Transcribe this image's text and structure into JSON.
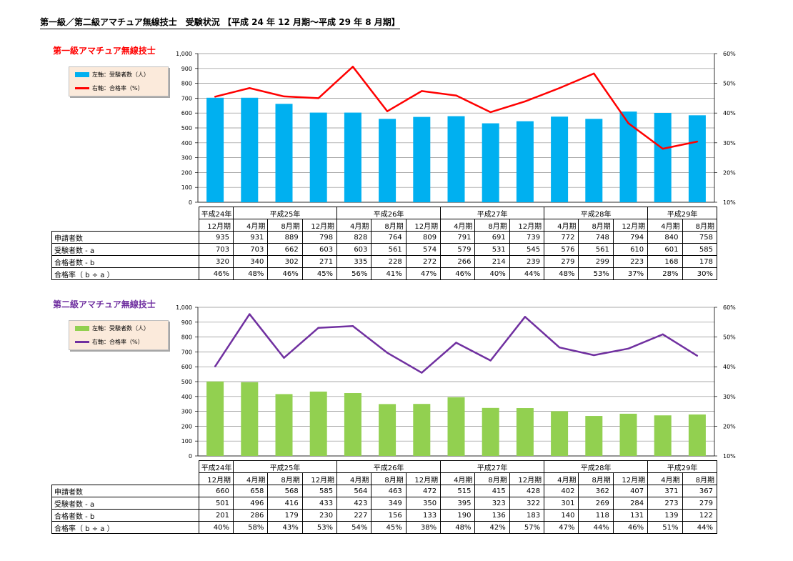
{
  "page_title": "第一級／第二級アマチュア無線技士　受験状況 【平成 24 年 12 月期～平成 29 年 8 月期】",
  "sections": [
    {
      "title": "第一級アマチュア無線技士",
      "title_color": "#ff0000",
      "legend": {
        "bar_label": "左軸：受験者数（人）",
        "line_label": "右軸：合格率（%）"
      },
      "years": [
        {
          "label": "平成24年",
          "span": 1
        },
        {
          "label": "平成25年",
          "span": 3
        },
        {
          "label": "平成26年",
          "span": 3
        },
        {
          "label": "平成27年",
          "span": 3
        },
        {
          "label": "平成28年",
          "span": 3
        },
        {
          "label": "平成29年",
          "span": 2
        }
      ],
      "row_labels": [
        "申請者数",
        "受験者数 - a",
        "合格者数 - b",
        "合格率（ b ÷ a ）"
      ],
      "rows": {
        "applicants": [
          935,
          931,
          889,
          798,
          828,
          764,
          809,
          791,
          691,
          739,
          772,
          748,
          794,
          840,
          758
        ],
        "passed": [
          320,
          340,
          302,
          271,
          335,
          228,
          272,
          266,
          214,
          239,
          279,
          299,
          223,
          168,
          178
        ],
        "rate_labels": [
          "46%",
          "48%",
          "46%",
          "45%",
          "56%",
          "41%",
          "47%",
          "46%",
          "40%",
          "44%",
          "48%",
          "53%",
          "37%",
          "28%",
          "30%"
        ]
      },
      "chart_data": {
        "type": "bar",
        "categories": [
          "12月期",
          "4月期",
          "8月期",
          "12月期",
          "4月期",
          "8月期",
          "12月期",
          "4月期",
          "8月期",
          "12月期",
          "4月期",
          "8月期",
          "12月期",
          "4月期",
          "8月期"
        ],
        "series": [
          {
            "name": "左軸：受験者数（人）",
            "type": "bar",
            "axis": "left",
            "color": "#00b0f0",
            "values": [
              703,
              703,
              662,
              603,
              603,
              561,
              574,
              579,
              531,
              545,
              576,
              561,
              610,
              601,
              585
            ]
          },
          {
            "name": "右軸：合格率（%）",
            "type": "line",
            "axis": "right",
            "color": "#ff0000",
            "values": [
              45.5,
              48.4,
              45.6,
              45.0,
              55.6,
              40.6,
              47.4,
              45.9,
              40.3,
              43.9,
              48.4,
              53.3,
              36.6,
              28.0,
              30.4
            ]
          }
        ],
        "y_left": {
          "min": 0,
          "max": 1000,
          "step": 100,
          "tick_labels": [
            "0",
            "100",
            "200",
            "300",
            "400",
            "500",
            "600",
            "700",
            "800",
            "900",
            "1,000"
          ]
        },
        "y_right": {
          "min": 10,
          "max": 60,
          "step": 10,
          "tick_labels": [
            "10%",
            "20%",
            "30%",
            "40%",
            "50%",
            "60%"
          ]
        },
        "grid": true,
        "legend_position": "top-left"
      }
    },
    {
      "title": "第二級アマチュア無線技士",
      "title_color": "#7030a0",
      "legend": {
        "bar_label": "左軸：受験者数（人）",
        "line_label": "右軸：合格率（%）"
      },
      "years": [
        {
          "label": "平成24年",
          "span": 1
        },
        {
          "label": "平成25年",
          "span": 3
        },
        {
          "label": "平成26年",
          "span": 3
        },
        {
          "label": "平成27年",
          "span": 3
        },
        {
          "label": "平成28年",
          "span": 3
        },
        {
          "label": "平成29年",
          "span": 2
        }
      ],
      "row_labels": [
        "申請者数",
        "受験者数 - a",
        "合格者数 - b",
        "合格率（ b ÷ a ）"
      ],
      "rows": {
        "applicants": [
          660,
          658,
          568,
          585,
          564,
          463,
          472,
          515,
          415,
          428,
          402,
          362,
          407,
          371,
          367
        ],
        "passed": [
          201,
          286,
          179,
          230,
          227,
          156,
          133,
          190,
          136,
          183,
          140,
          118,
          131,
          139,
          122
        ],
        "rate_labels": [
          "40%",
          "58%",
          "43%",
          "53%",
          "54%",
          "45%",
          "38%",
          "48%",
          "42%",
          "57%",
          "47%",
          "44%",
          "46%",
          "51%",
          "44%"
        ]
      },
      "chart_data": {
        "type": "bar",
        "categories": [
          "12月期",
          "4月期",
          "8月期",
          "12月期",
          "4月期",
          "8月期",
          "12月期",
          "4月期",
          "8月期",
          "12月期",
          "4月期",
          "8月期",
          "12月期",
          "4月期",
          "8月期"
        ],
        "series": [
          {
            "name": "左軸：受験者数（人）",
            "type": "bar",
            "axis": "left",
            "color": "#92d050",
            "values": [
              501,
              496,
              416,
              433,
              423,
              349,
              350,
              395,
              323,
              322,
              301,
              269,
              284,
              273,
              279
            ]
          },
          {
            "name": "右軸：合格率（%）",
            "type": "line",
            "axis": "right",
            "color": "#7030a0",
            "values": [
              40.1,
              57.7,
              43.0,
              53.1,
              53.7,
              44.7,
              38.0,
              48.1,
              42.1,
              56.8,
              46.5,
              43.9,
              46.1,
              50.9,
              43.7
            ]
          }
        ],
        "y_left": {
          "min": 0,
          "max": 1000,
          "step": 100,
          "tick_labels": [
            "0",
            "100",
            "200",
            "300",
            "400",
            "500",
            "600",
            "700",
            "800",
            "900",
            "1,000"
          ]
        },
        "y_right": {
          "min": 10,
          "max": 60,
          "step": 10,
          "tick_labels": [
            "10%",
            "20%",
            "30%",
            "40%",
            "50%",
            "60%"
          ]
        },
        "grid": true,
        "legend_position": "top-left"
      }
    }
  ]
}
